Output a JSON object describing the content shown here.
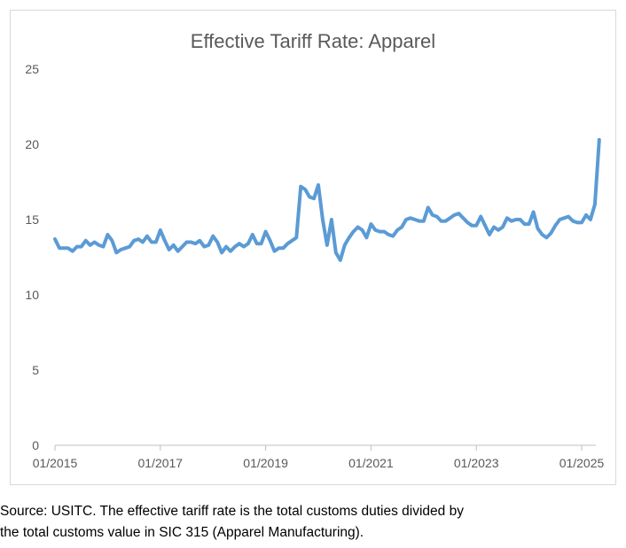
{
  "chart_data": {
    "type": "line",
    "title": "Effective Tariff Rate: Apparel",
    "xlabel": "",
    "ylabel": "",
    "ylim": [
      0,
      25
    ],
    "yticks": [
      0,
      5,
      10,
      15,
      20,
      25
    ],
    "xticks": [
      "01/2015",
      "01/2017",
      "01/2019",
      "01/2021",
      "01/2023",
      "01/2025"
    ],
    "grid": false,
    "legend": "none",
    "line_color": "#5b9bd5",
    "series": [
      {
        "values": [
          13.7,
          13.1,
          13.1,
          13.1,
          12.9,
          13.2,
          13.2,
          13.6,
          13.3,
          13.5,
          13.3,
          13.2,
          14.0,
          13.6,
          12.8,
          13.0,
          13.1,
          13.2,
          13.6,
          13.7,
          13.5,
          13.9,
          13.5,
          13.5,
          14.3,
          13.6,
          13.0,
          13.3,
          12.9,
          13.2,
          13.5,
          13.5,
          13.4,
          13.6,
          13.2,
          13.3,
          13.9,
          13.5,
          12.8,
          13.2,
          12.9,
          13.2,
          13.4,
          13.2,
          13.4,
          14.0,
          13.4,
          13.4,
          14.2,
          13.6,
          12.9,
          13.1,
          13.1,
          13.4,
          13.6,
          13.8,
          17.2,
          17.0,
          16.5,
          16.4,
          17.3,
          15.0,
          13.3,
          15.0,
          12.8,
          12.3,
          13.3,
          13.8,
          14.2,
          14.5,
          14.3,
          13.8,
          14.7,
          14.3,
          14.2,
          14.2,
          14.0,
          13.9,
          14.3,
          14.5,
          15.0,
          15.1,
          15.0,
          14.9,
          14.9,
          15.8,
          15.3,
          15.2,
          14.9,
          14.9,
          15.1,
          15.3,
          15.4,
          15.1,
          14.8,
          14.6,
          14.6,
          15.2,
          14.6,
          14.0,
          14.5,
          14.3,
          14.5,
          15.1,
          14.9,
          15.0,
          15.0,
          14.7,
          14.7,
          15.5,
          14.4,
          14.0,
          13.8,
          14.1,
          14.6,
          15.0,
          15.1,
          15.2,
          14.9,
          14.8,
          14.8,
          15.3,
          15.0,
          16.0,
          20.3
        ]
      }
    ]
  },
  "source_note": {
    "line1": "Source: USITC. The effective tariff rate is the total customs duties divided by",
    "line2": "the total customs value in SIC 315 (Apparel Manufacturing)."
  }
}
